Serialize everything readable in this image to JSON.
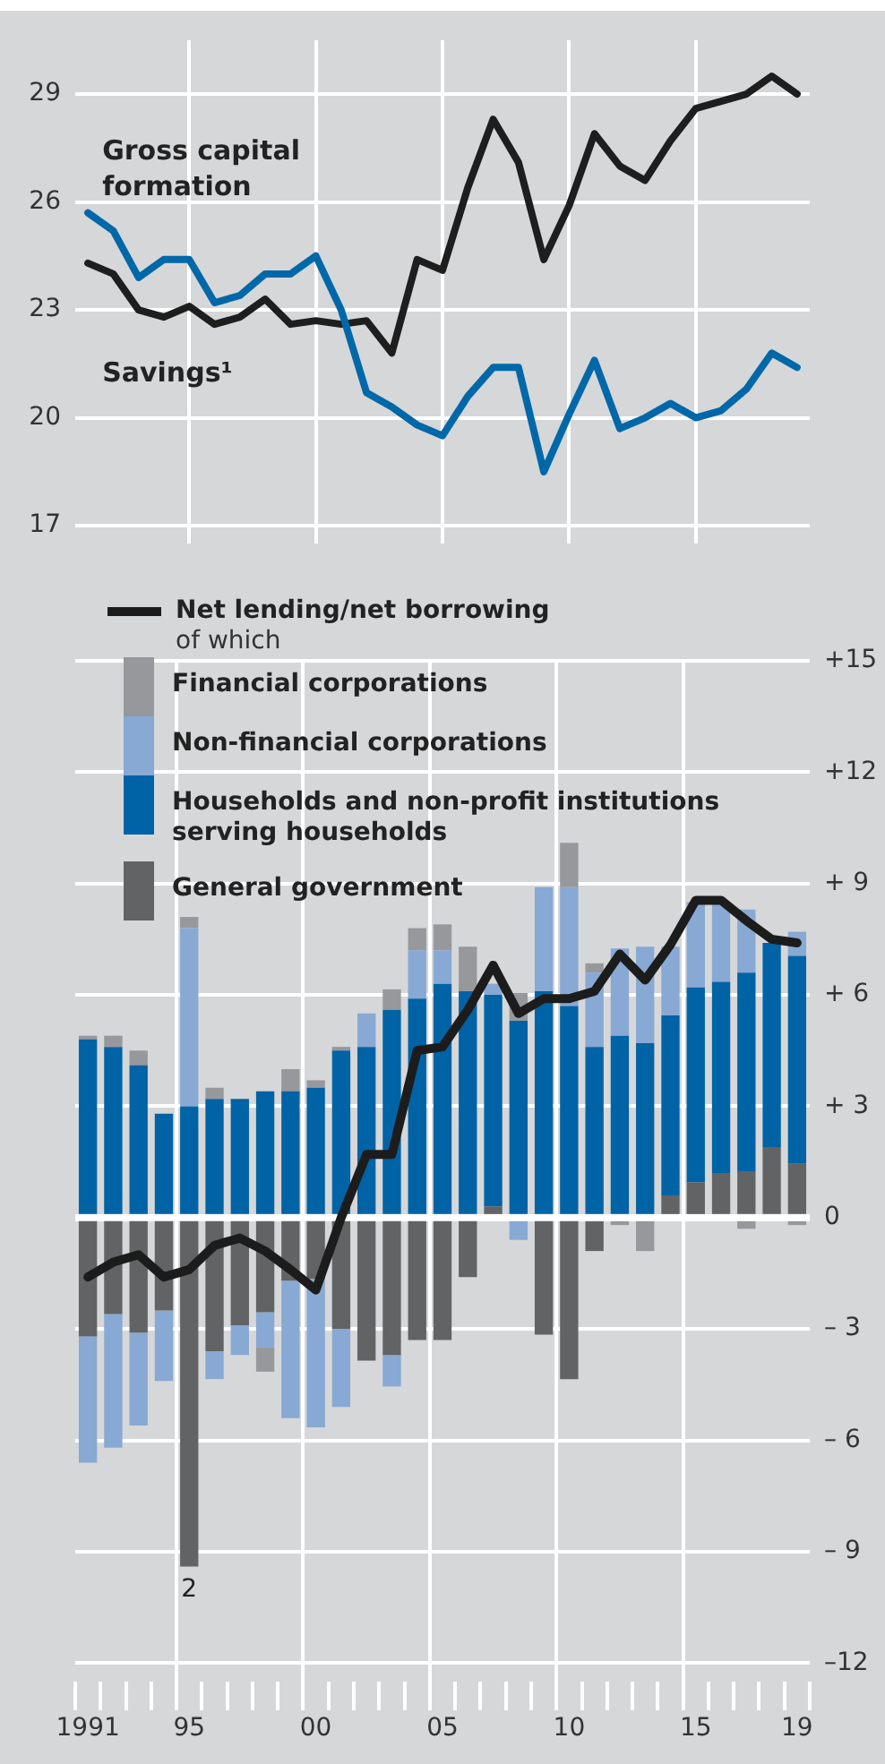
{
  "chart_data": [
    {
      "type": "line",
      "categories": [
        "1991",
        null,
        null,
        null,
        "95",
        null,
        null,
        null,
        null,
        "00",
        null,
        null,
        null,
        null,
        "05",
        null,
        null,
        null,
        null,
        "10",
        null,
        null,
        null,
        null,
        "15",
        null,
        null,
        null,
        "19"
      ],
      "series": [
        {
          "name": "Gross capital formation",
          "color": "#0068a8",
          "values": [
            25.7,
            25.2,
            23.9,
            24.4,
            24.4,
            23.2,
            23.4,
            24.0,
            24.0,
            24.5,
            23.0,
            20.7,
            20.3,
            19.8,
            19.5,
            20.6,
            21.4,
            21.4,
            18.5,
            20.1,
            21.6,
            19.7,
            20.0,
            20.4,
            20.0,
            20.2,
            20.8,
            21.8,
            21.4
          ]
        },
        {
          "name": "Savings¹",
          "color": "#1e1e1e",
          "values": [
            24.3,
            24.0,
            23.0,
            22.8,
            23.1,
            22.6,
            22.8,
            23.3,
            22.6,
            22.7,
            22.6,
            22.7,
            21.8,
            24.4,
            24.1,
            26.4,
            28.3,
            27.1,
            24.4,
            25.9,
            27.9,
            27.0,
            26.6,
            27.7,
            28.6,
            28.8,
            29.0,
            29.5,
            29.0
          ]
        }
      ],
      "ylim": [
        16.5,
        30.5
      ],
      "yticks": [
        17,
        20,
        23,
        26,
        29
      ],
      "grid": true,
      "legend": false,
      "tick_labels": "y"
    },
    {
      "type": "bar",
      "stacked": true,
      "categories": [
        "1991",
        null,
        null,
        null,
        "95",
        null,
        null,
        null,
        null,
        "00",
        null,
        null,
        null,
        null,
        "05",
        null,
        null,
        null,
        null,
        "10",
        null,
        null,
        null,
        null,
        "15",
        null,
        null,
        null,
        "19"
      ],
      "series": [
        {
          "name": "General government",
          "type": "bar",
          "color": "#626365",
          "values": [
            -3.2,
            -2.6,
            -3.1,
            -2.5,
            -9.4,
            -3.6,
            -2.9,
            -2.55,
            -1.7,
            -1.65,
            -3.0,
            -3.85,
            -3.7,
            -3.3,
            -3.3,
            -1.6,
            0.3,
            null,
            -3.15,
            -4.35,
            -0.9,
            null,
            null,
            0.6,
            0.95,
            1.2,
            1.25,
            1.9,
            1.45
          ]
        },
        {
          "name": "Households and non-profit institutions serving households",
          "type": "bar",
          "color": "#0063a6",
          "values": [
            4.8,
            4.6,
            4.1,
            2.8,
            3.0,
            3.2,
            3.2,
            3.4,
            3.4,
            3.5,
            4.5,
            4.6,
            5.6,
            5.9,
            6.3,
            6.1,
            5.7,
            5.3,
            6.1,
            5.7,
            4.6,
            4.9,
            4.7,
            4.85,
            5.25,
            5.15,
            5.35,
            5.5,
            5.6
          ]
        },
        {
          "name": "Non-financial corporations",
          "type": "bar",
          "color": "#87a9d3",
          "values": [
            -3.4,
            -3.6,
            -2.5,
            -1.9,
            4.8,
            -0.75,
            -0.8,
            -0.95,
            -3.7,
            -4.0,
            -2.1,
            0.9,
            -0.85,
            1.3,
            0.9,
            null,
            0.3,
            -0.6,
            2.8,
            3.2,
            2.0,
            2.35,
            2.6,
            1.85,
            2.3,
            2.1,
            1.7,
            null,
            0.65
          ]
        },
        {
          "name": "Financial corporations",
          "type": "bar",
          "color": "#97989b",
          "values": [
            0.1,
            0.3,
            0.4,
            null,
            0.3,
            0.3,
            null,
            -0.65,
            0.6,
            0.2,
            0.1,
            null,
            0.55,
            0.6,
            0.7,
            1.2,
            null,
            0.75,
            null,
            1.2,
            0.25,
            -0.2,
            -0.9,
            null,
            null,
            null,
            -0.3,
            null,
            -0.2
          ]
        },
        {
          "name": "Net lending/net borrowing",
          "type": "line",
          "color": "#1c1c1c",
          "values": [
            -1.6,
            -1.2,
            -1.0,
            -1.6,
            -1.4,
            -0.75,
            -0.55,
            -0.9,
            -1.4,
            -1.95,
            0,
            1.7,
            1.7,
            4.5,
            4.6,
            5.6,
            6.8,
            5.5,
            5.9,
            5.9,
            6.1,
            7.1,
            6.4,
            7.35,
            8.55,
            8.55,
            8.0,
            7.5,
            7.4
          ]
        }
      ],
      "ylim": [
        -12.5,
        15
      ],
      "yticks": [
        {
          "value": -12,
          "label": "–12"
        },
        {
          "value": -9,
          "label": "– 9"
        },
        {
          "value": -6,
          "label": "– 6"
        },
        {
          "value": -3,
          "label": "– 3"
        },
        0,
        {
          "value": 3,
          "label": "+ 3"
        },
        {
          "value": 6,
          "label": "+ 6"
        },
        {
          "value": 9,
          "label": "+ 9"
        },
        {
          "value": 12,
          "label": "+12"
        },
        {
          "value": 15,
          "label": "+15"
        }
      ],
      "grid": true,
      "legend": "top left",
      "annotations": [
        "of which",
        {
          "text": "2",
          "x": "95",
          "y": -9.4
        }
      ]
    }
  ]
}
